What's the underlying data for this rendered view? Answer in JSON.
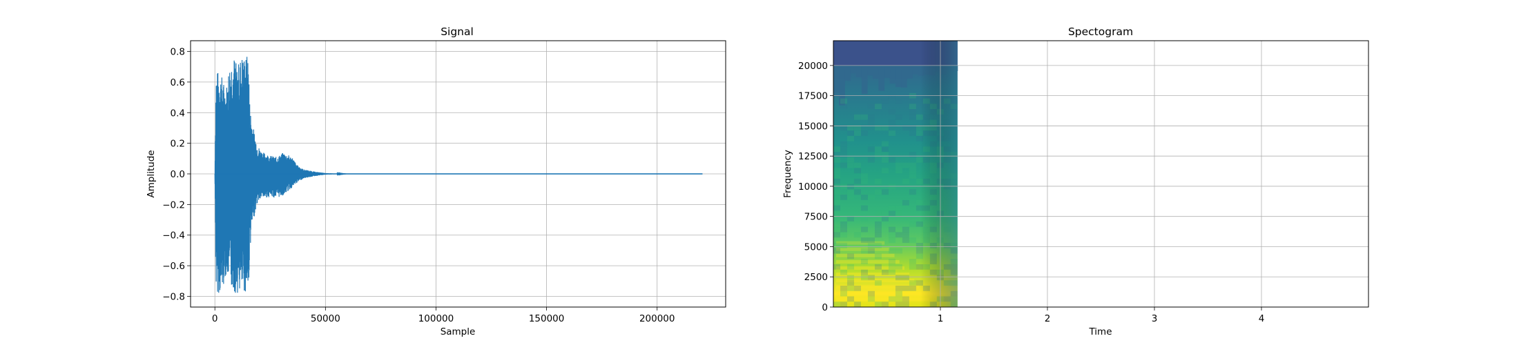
{
  "chart_data": [
    {
      "type": "line",
      "title": "Signal",
      "xlabel": "Sample",
      "ylabel": "Amplitude",
      "xlim": [
        -11000,
        231000
      ],
      "ylim": [
        -0.87,
        0.87
      ],
      "xticks": [
        0,
        50000,
        100000,
        150000,
        200000
      ],
      "xtick_labels": [
        "0",
        "50000",
        "100000",
        "150000",
        "200000"
      ],
      "yticks": [
        -0.8,
        -0.6,
        -0.4,
        -0.2,
        0.0,
        0.2,
        0.4,
        0.6,
        0.8
      ],
      "ytick_labels": [
        "−0.8",
        "−0.6",
        "−0.4",
        "−0.2",
        "0.0",
        "0.2",
        "0.4",
        "0.6",
        "0.8"
      ],
      "grid": true,
      "color": "#1f77b4",
      "envelope": {
        "x": [
          0,
          500,
          1500,
          3000,
          5000,
          6500,
          8000,
          9000,
          10000,
          12000,
          14000,
          15200,
          15800,
          17000,
          19000,
          20500,
          22000,
          25000,
          28000,
          31000,
          35000,
          37000,
          40000,
          45000,
          50000,
          55000,
          60000,
          220500
        ],
        "upper": [
          0.0,
          0.68,
          0.67,
          0.65,
          0.55,
          0.72,
          0.78,
          0.77,
          0.7,
          0.78,
          0.77,
          0.79,
          0.45,
          0.33,
          0.2,
          0.16,
          0.14,
          0.12,
          0.11,
          0.14,
          0.11,
          0.06,
          0.03,
          0.015,
          0.005,
          0.002,
          0.0,
          0.0
        ],
        "lower": [
          0.0,
          -0.78,
          -0.78,
          -0.79,
          -0.66,
          -0.7,
          -0.77,
          -0.78,
          -0.78,
          -0.78,
          -0.78,
          -0.79,
          -0.5,
          -0.33,
          -0.2,
          -0.17,
          -0.16,
          -0.15,
          -0.16,
          -0.14,
          -0.09,
          -0.06,
          -0.03,
          -0.015,
          -0.005,
          -0.002,
          0.0,
          0.0
        ]
      }
    },
    {
      "type": "heatmap",
      "title": "Spectogram",
      "xlabel": "Time",
      "ylabel": "Frequency",
      "xlim": [
        0.0,
        5.0
      ],
      "ylim": [
        0,
        22050
      ],
      "xticks": [
        1,
        2,
        3,
        4
      ],
      "xtick_labels": [
        "1",
        "2",
        "3",
        "4"
      ],
      "yticks": [
        0,
        2500,
        5000,
        7500,
        10000,
        12500,
        15000,
        17500,
        20000
      ],
      "ytick_labels": [
        "0",
        "2500",
        "5000",
        "7500",
        "10000",
        "12500",
        "15000",
        "17500",
        "20000"
      ],
      "grid": true,
      "colormap": "viridis",
      "data_extent_time": [
        0.0,
        1.16
      ],
      "colors": {
        "low": "#3b528b",
        "mid": "#21918c",
        "high": "#5ec962",
        "peak": "#fde725"
      }
    }
  ]
}
